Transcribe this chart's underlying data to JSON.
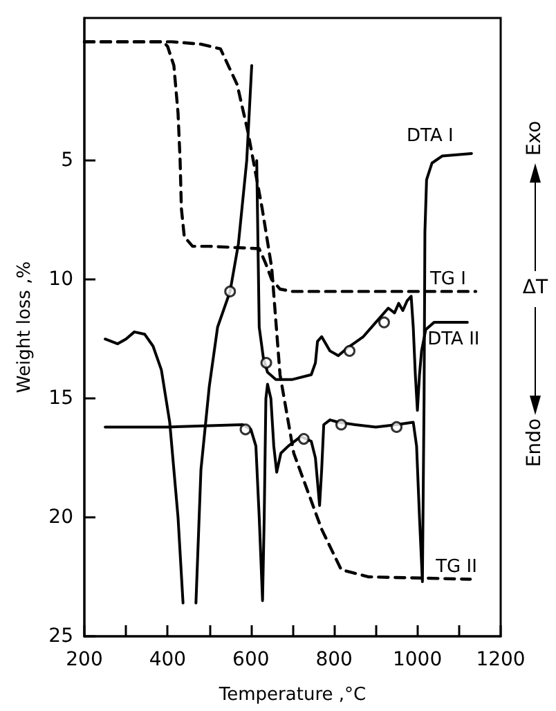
{
  "chart_data": {
    "type": "line",
    "xlabel": "Temperature ,°C",
    "ylabel": "Weight loss ,%",
    "xlim": [
      200,
      1200
    ],
    "xticks": [
      200,
      {
        "value": 300,
        "label": null
      },
      400,
      {
        "value": 500,
        "label": null
      },
      600,
      {
        "value": 700,
        "label": null
      },
      800,
      {
        "value": 900,
        "label": null
      },
      1000,
      {
        "value": 1100,
        "label": null
      },
      1200
    ],
    "ylim": [
      25,
      -1
    ],
    "yticks": [
      5,
      10,
      15,
      20,
      25
    ],
    "grid": false,
    "legend": false,
    "annotations": [
      "Exo",
      "ΔT",
      "Endo"
    ],
    "series": [
      {
        "name": "TG I",
        "color": "#000000",
        "line_style": "dashed",
        "x": [
          200,
          390,
          400,
          415,
          425,
          430,
          433,
          440,
          460,
          500,
          620,
          635,
          650,
          670,
          700,
          1140
        ],
        "values": [
          0,
          0,
          0.2,
          1,
          3,
          5,
          7,
          8.2,
          8.6,
          8.6,
          8.7,
          9.3,
          10,
          10.4,
          10.5,
          10.5
        ]
      },
      {
        "name": "TG II",
        "color": "#000000",
        "line_style": "dashed",
        "x": [
          200,
          410,
          480,
          527,
          567,
          593,
          627,
          650,
          670,
          703,
          770,
          817,
          883,
          1127
        ],
        "values": [
          0,
          0,
          0.1,
          0.3,
          1.8,
          3.8,
          7,
          9.5,
          14,
          17.3,
          20.5,
          22.2,
          22.5,
          22.6
        ]
      },
      {
        "name": "DTA I",
        "color": "#000000",
        "line_style": "solid",
        "x": [
          250,
          400,
          580,
          600,
          612,
          620,
          628,
          632,
          636,
          640,
          648,
          655,
          662,
          672,
          690,
          720,
          745,
          755,
          765,
          770,
          775,
          790,
          810,
          850,
          900,
          950,
          990,
          998,
          1005,
          1012,
          1016,
          1018,
          1022,
          1035,
          1060,
          1130
        ],
        "values": [
          16.2,
          16.2,
          16.1,
          16.3,
          17,
          20,
          23.5,
          20,
          15,
          14.4,
          15,
          17,
          18.1,
          17.3,
          17,
          16.6,
          16.8,
          17.5,
          19.5,
          18,
          16.1,
          15.9,
          16,
          16.1,
          16.2,
          16.1,
          16,
          17,
          20,
          22.7,
          15,
          8,
          5.8,
          5.1,
          4.8,
          4.7
        ]
      },
      {
        "name": "DTA II",
        "color": "#000000",
        "line_style": "solid",
        "x": [
          250,
          280,
          300,
          320,
          345,
          365,
          385,
          405,
          425,
          437,
          453,
          468,
          480,
          500,
          520,
          550,
          570,
          590,
          602,
          605,
          607,
          610,
          614,
          620,
          630,
          640,
          660,
          700,
          745,
          755,
          760,
          770,
          790,
          810,
          830,
          870,
          900,
          930,
          945,
          955,
          965,
          975,
          985,
          990,
          995,
          1000,
          1005,
          1010,
          1020,
          1040,
          1120
        ],
        "values": [
          12.5,
          12.7,
          12.5,
          12.2,
          12.3,
          12.8,
          13.8,
          16,
          20,
          23.6,
          null,
          23.6,
          18,
          14.5,
          12,
          10.5,
          8.5,
          5,
          1,
          null,
          null,
          null,
          5,
          12,
          13.3,
          13.9,
          14.2,
          14.2,
          14,
          13.5,
          12.6,
          12.4,
          13,
          13.2,
          12.9,
          12.4,
          11.8,
          11.2,
          11.4,
          11,
          11.3,
          10.9,
          10.7,
          12,
          14,
          15.5,
          14,
          13,
          12.1,
          11.8,
          11.8
        ]
      },
      {
        "type": "scatter",
        "marker": "circle",
        "color": "#000000",
        "x": [
          587,
          727,
          817,
          950,
          550,
          637,
          837,
          920
        ],
        "values": [
          16.3,
          16.7,
          16.1,
          16.2,
          10.5,
          13.5,
          13,
          11.8
        ]
      }
    ]
  }
}
